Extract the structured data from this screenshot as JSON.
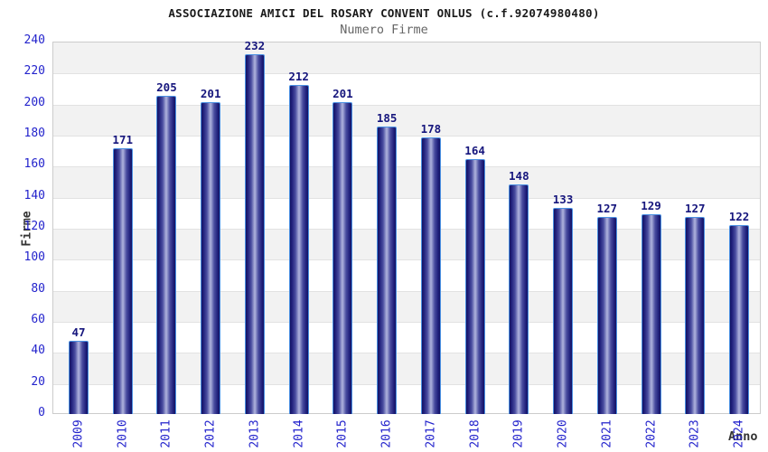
{
  "header": {
    "title": "ASSOCIAZIONE AMICI DEL ROSARY CONVENT ONLUS (c.f.92074980480)",
    "subtitle": "Numero Firme"
  },
  "chart_data": {
    "type": "bar",
    "title": "ASSOCIAZIONE AMICI DEL ROSARY CONVENT ONLUS (c.f.92074980480)",
    "subtitle": "Numero Firme",
    "xlabel": "Anno",
    "ylabel": "Firme",
    "categories": [
      "2009",
      "2010",
      "2011",
      "2012",
      "2013",
      "2014",
      "2015",
      "2016",
      "2017",
      "2018",
      "2019",
      "2020",
      "2021",
      "2022",
      "2023",
      "2024"
    ],
    "values": [
      47,
      171,
      205,
      201,
      232,
      212,
      201,
      185,
      178,
      164,
      148,
      133,
      127,
      129,
      127,
      122
    ],
    "ylim": [
      0,
      240
    ],
    "ytick_step": 20,
    "grid": true,
    "legend_position": "none",
    "band_fill_alternating": true,
    "colors": {
      "axis_tick_text": "#2323cc",
      "value_label_text": "#16167d",
      "bar_border": "#4a90e2",
      "bar_dark": "#121263",
      "bar_highlight": "#b0b4de",
      "band_gray": "#f2f2f2",
      "gridline": "#e2e2e2",
      "title_text": "#1a1a1a",
      "subtitle_text": "#666666",
      "axis_title_text": "#333333"
    }
  }
}
